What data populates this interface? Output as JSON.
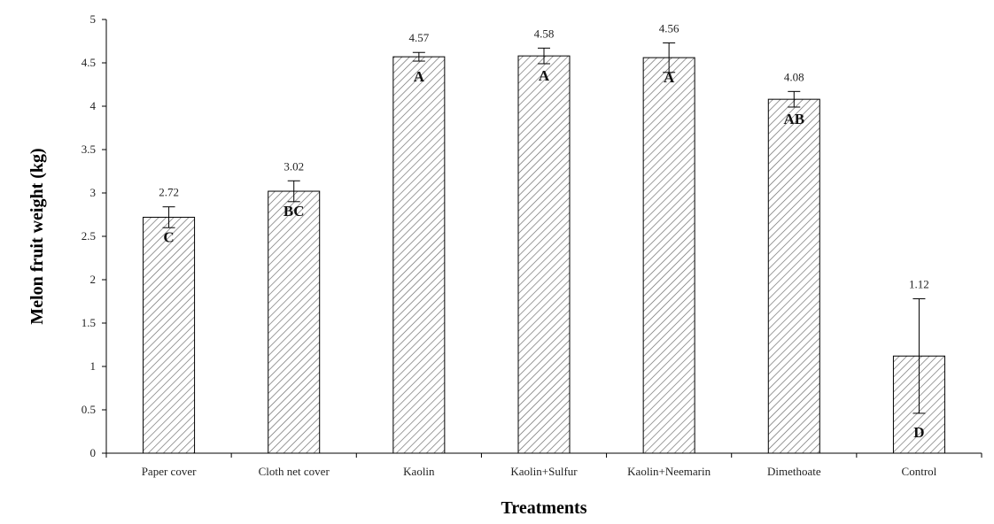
{
  "chart_data": {
    "type": "bar",
    "title": "",
    "xlabel": "Treatments",
    "ylabel": "Melon fruit weight (kg)",
    "ylim": [
      0,
      5
    ],
    "yticks": [
      "0",
      "0.5",
      "1",
      "1.5",
      "2",
      "2.5",
      "3",
      "3.5",
      "4",
      "4.5",
      "5"
    ],
    "grid": false,
    "categories": [
      "Paper cover",
      "Cloth net cover",
      "Kaolin",
      "Kaolin+Sulfur",
      "Kaolin+Neemarin",
      "Dimethoate",
      "Control"
    ],
    "values": [
      2.72,
      3.02,
      4.57,
      4.58,
      4.56,
      4.08,
      1.12
    ],
    "value_labels": [
      "2.72",
      "3.02",
      "4.57",
      "4.58",
      "4.56",
      "4.08",
      "1.12"
    ],
    "error": [
      0.12,
      0.12,
      0.05,
      0.09,
      0.17,
      0.09,
      0.66
    ],
    "significance_letters": [
      "C",
      "BC",
      "A",
      "A",
      "A",
      "AB",
      "D"
    ],
    "bar_fill": "diagonal-hatch",
    "colors": {
      "bar_stroke": "#000000",
      "hatch": "#555555",
      "axis": "#000000"
    }
  }
}
